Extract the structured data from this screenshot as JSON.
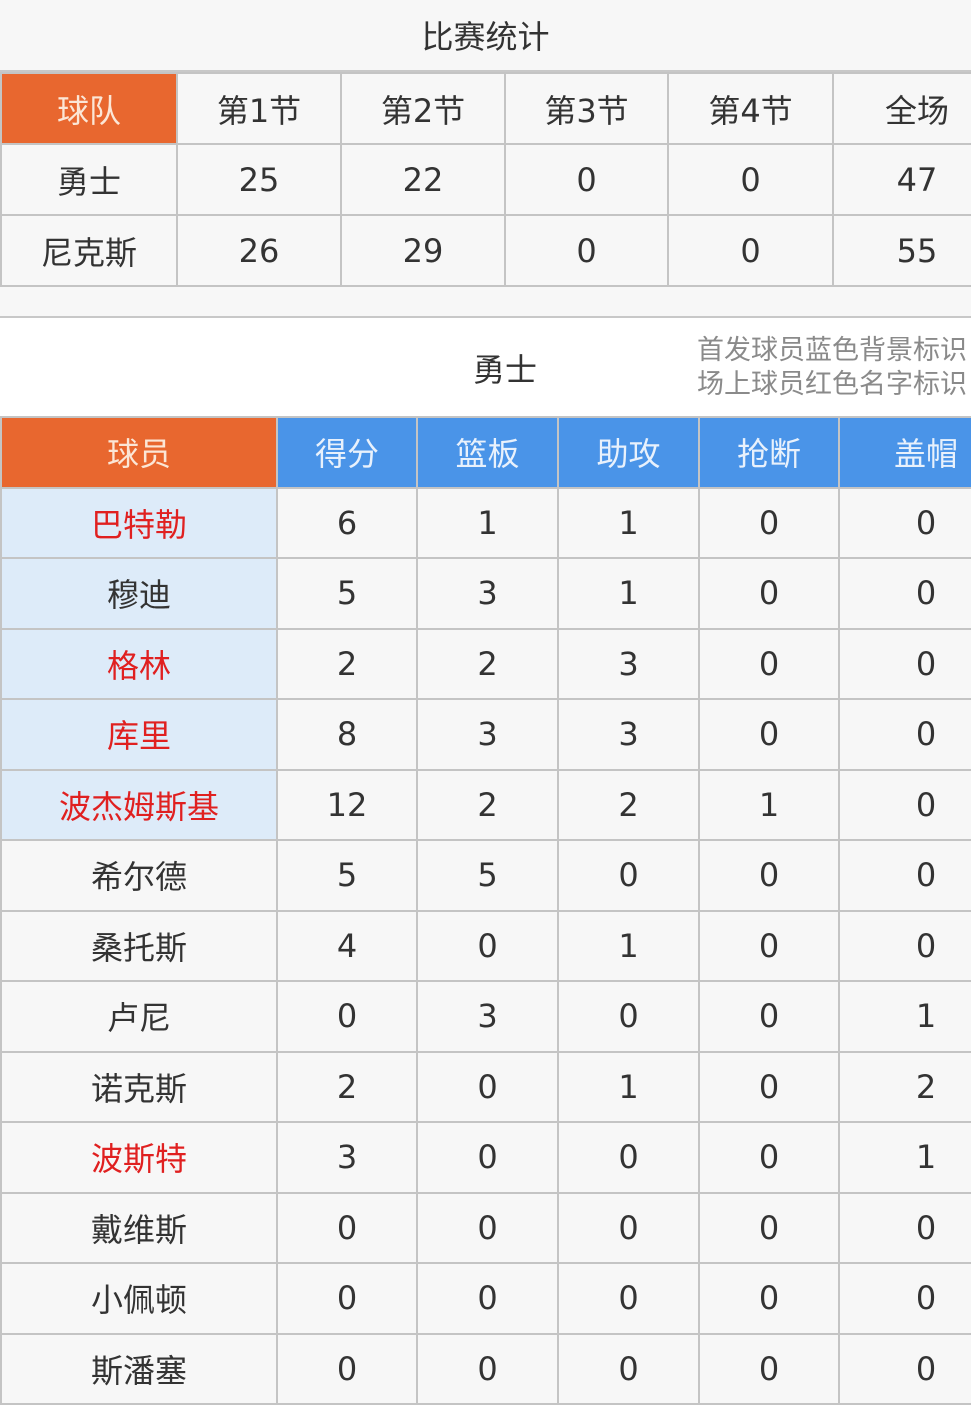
{
  "title": "比赛统计",
  "scoreboard": {
    "headers": [
      "球队",
      "第1节",
      "第2节",
      "第3节",
      "第4节",
      "全场"
    ],
    "rows": [
      {
        "team": "勇士",
        "q": [
          "25",
          "22",
          "0",
          "0",
          "47"
        ]
      },
      {
        "team": "尼克斯",
        "q": [
          "26",
          "29",
          "0",
          "0",
          "55"
        ]
      }
    ]
  },
  "team_section": {
    "name": "勇士",
    "note_line1": "首发球员蓝色背景标识",
    "note_line2": "场上球员红色名字标识"
  },
  "players": {
    "headers": [
      "球员",
      "得分",
      "篮板",
      "助攻",
      "抢断",
      "盖帽"
    ],
    "colors": {
      "header_orange": "#e8672f",
      "header_blue": "#4a94e8",
      "starter_bg": "#ddebf9",
      "on_court_red": "#e02020"
    },
    "rows": [
      {
        "name": "巴特勒",
        "starter": true,
        "on_court": true,
        "stats": [
          "6",
          "1",
          "1",
          "0",
          "0"
        ]
      },
      {
        "name": "穆迪",
        "starter": true,
        "on_court": false,
        "stats": [
          "5",
          "3",
          "1",
          "0",
          "0"
        ]
      },
      {
        "name": "格林",
        "starter": true,
        "on_court": true,
        "stats": [
          "2",
          "2",
          "3",
          "0",
          "0"
        ]
      },
      {
        "name": "库里",
        "starter": true,
        "on_court": true,
        "stats": [
          "8",
          "3",
          "3",
          "0",
          "0"
        ]
      },
      {
        "name": "波杰姆斯基",
        "starter": true,
        "on_court": true,
        "stats": [
          "12",
          "2",
          "2",
          "1",
          "0"
        ]
      },
      {
        "name": "希尔德",
        "starter": false,
        "on_court": false,
        "stats": [
          "5",
          "5",
          "0",
          "0",
          "0"
        ]
      },
      {
        "name": "桑托斯",
        "starter": false,
        "on_court": false,
        "stats": [
          "4",
          "0",
          "1",
          "0",
          "0"
        ]
      },
      {
        "name": "卢尼",
        "starter": false,
        "on_court": false,
        "stats": [
          "0",
          "3",
          "0",
          "0",
          "1"
        ]
      },
      {
        "name": "诺克斯",
        "starter": false,
        "on_court": false,
        "stats": [
          "2",
          "0",
          "1",
          "0",
          "2"
        ]
      },
      {
        "name": "波斯特",
        "starter": false,
        "on_court": true,
        "stats": [
          "3",
          "0",
          "0",
          "0",
          "1"
        ]
      },
      {
        "name": "戴维斯",
        "starter": false,
        "on_court": false,
        "stats": [
          "0",
          "0",
          "0",
          "0",
          "0"
        ]
      },
      {
        "name": "小佩顿",
        "starter": false,
        "on_court": false,
        "stats": [
          "0",
          "0",
          "0",
          "0",
          "0"
        ]
      },
      {
        "name": "斯潘塞",
        "starter": false,
        "on_court": false,
        "stats": [
          "0",
          "0",
          "0",
          "0",
          "0"
        ]
      }
    ]
  }
}
